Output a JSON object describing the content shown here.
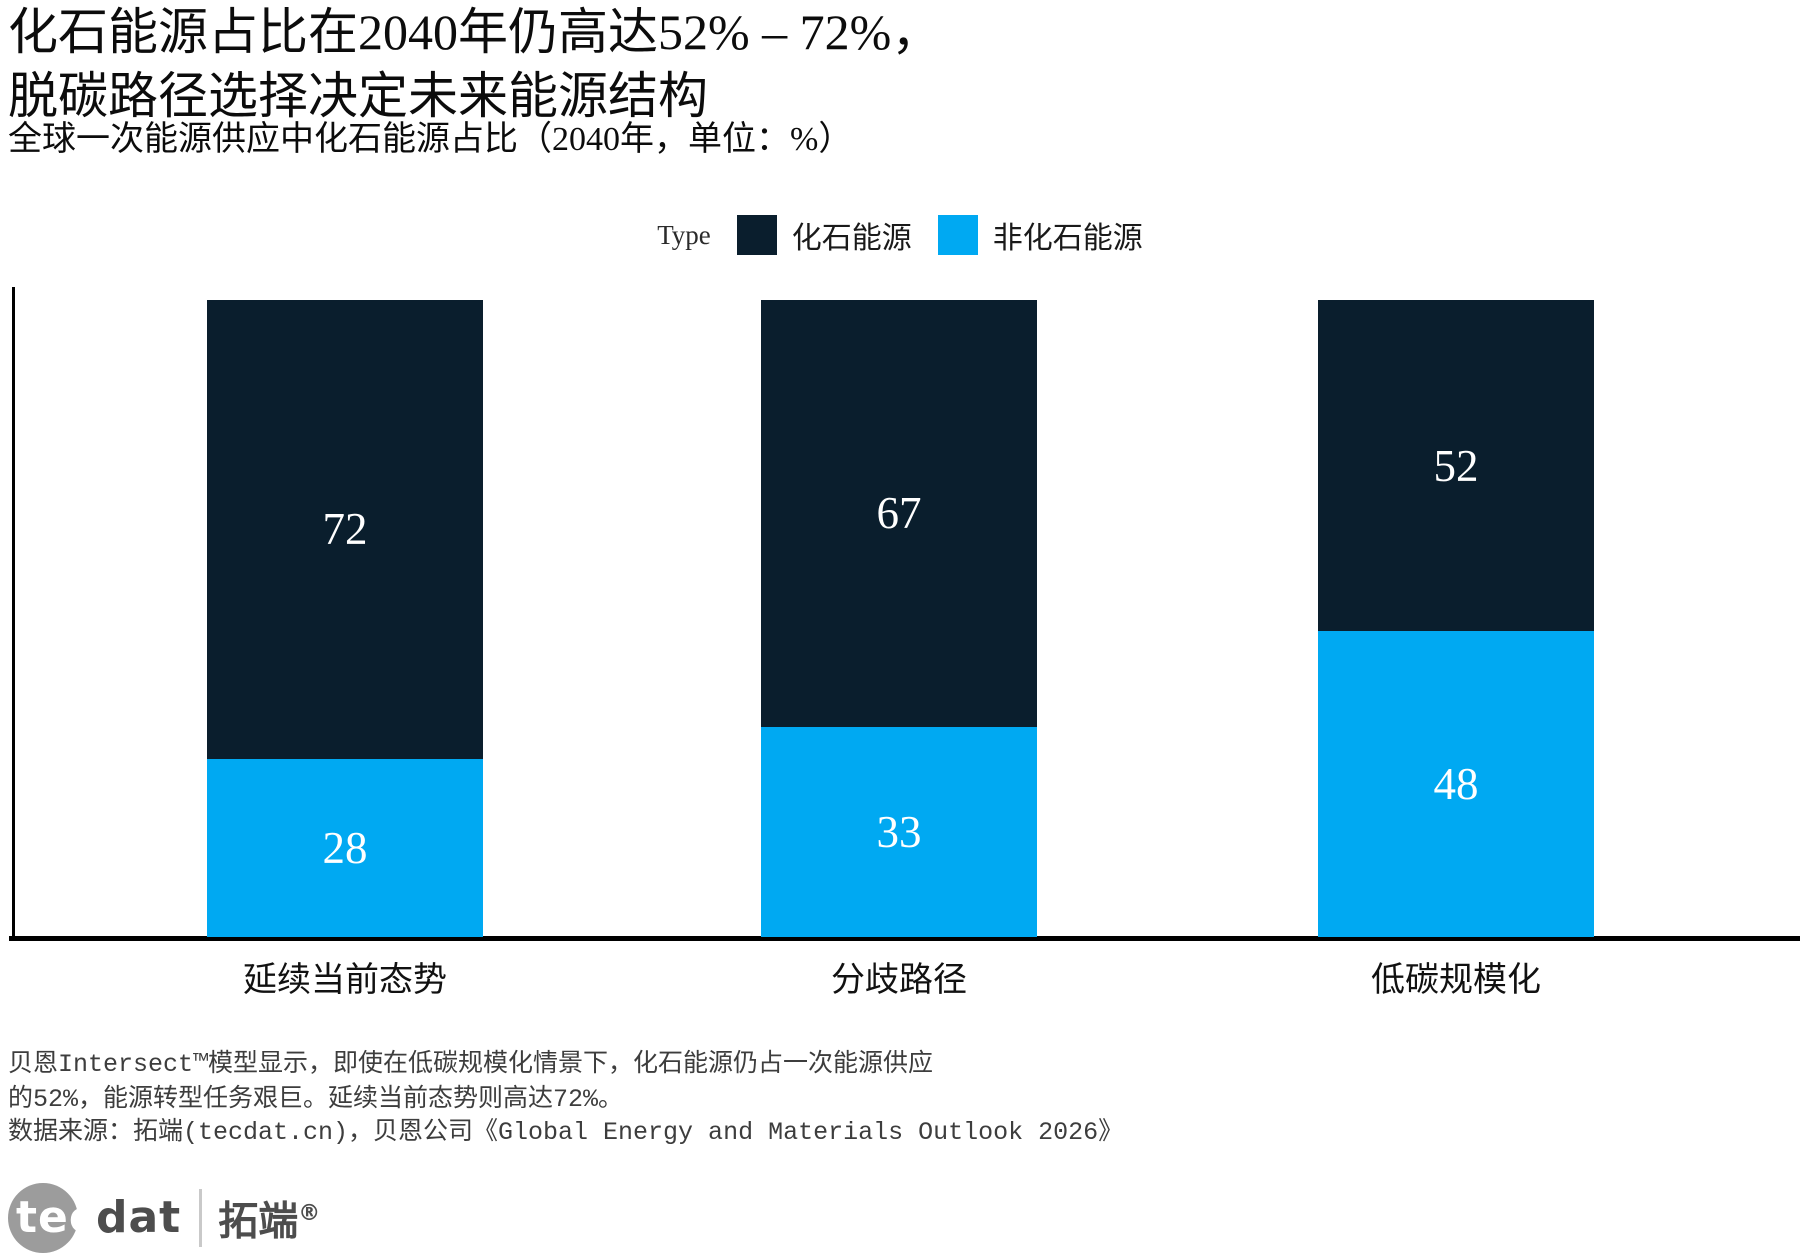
{
  "header": {
    "title_line1": "化石能源占比在2040年仍高达52% – 72%，",
    "title_line2": "脱碳路径选择决定未来能源结构",
    "subtitle": "全球一次能源供应中化石能源占比（2040年，单位：%）"
  },
  "legend": {
    "title": "Type",
    "items": [
      {
        "label": "化石能源",
        "color": "#0a1e2d"
      },
      {
        "label": "非化石能源",
        "color": "#00a9f2"
      }
    ]
  },
  "chart_data": {
    "type": "bar",
    "stacked": true,
    "orientation": "vertical",
    "categories": [
      "延续当前态势",
      "分歧路径",
      "低碳规模化"
    ],
    "series": [
      {
        "name": "化石能源",
        "color": "#0a1e2d",
        "values": [
          72,
          67,
          52
        ]
      },
      {
        "name": "非化石能源",
        "color": "#00a9f2",
        "values": [
          28,
          33,
          48
        ]
      }
    ],
    "value_unit": "%",
    "ylim": [
      0,
      100
    ],
    "grid": false,
    "legend_position": "top",
    "label_color": "#ffffff"
  },
  "footer": {
    "note_line1": "贝恩Intersect™模型显示，即使在低碳规模化情景下，化石能源仍占一次能源供应",
    "note_line2": "的52%，能源转型任务艰巨。延续当前态势则高达72%。",
    "source": "数据来源：拓端(tecdat.cn)，贝恩公司《Global Energy and Materials Outlook 2026》"
  },
  "logo": {
    "brand_tec": "tec",
    "brand_dat": "dat",
    "brand_cn": "拓端",
    "registered_mark": "®"
  }
}
